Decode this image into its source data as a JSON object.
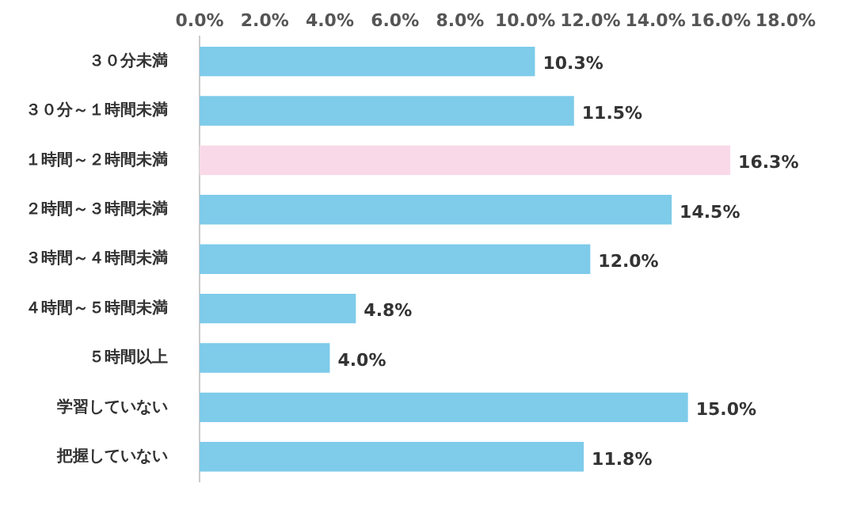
{
  "chart_data": {
    "type": "bar",
    "orientation": "horizontal",
    "categories": [
      "３０分未満",
      "３０分～１時間未満",
      "１時間～２時間未満",
      "２時間～３時間未満",
      "３時間～４時間未満",
      "４時間～５時間未満",
      "５時間以上",
      "学習していない",
      "把握していない"
    ],
    "values": [
      10.3,
      11.5,
      16.3,
      14.5,
      12.0,
      4.8,
      4.0,
      15.0,
      11.8
    ],
    "colors": [
      "#7ecbea",
      "#7ecbea",
      "#f9d9e8",
      "#7ecbea",
      "#7ecbea",
      "#7ecbea",
      "#7ecbea",
      "#7ecbea",
      "#7ecbea"
    ],
    "value_labels": [
      "10.3%",
      "11.5%",
      "16.3%",
      "14.5%",
      "12.0%",
      "4.8%",
      "4.0%",
      "15.0%",
      "11.8%"
    ],
    "xlim": [
      0,
      18
    ],
    "xticks": [
      {
        "value": 0,
        "label": "0.0%"
      },
      {
        "value": 2,
        "label": "2.0%"
      },
      {
        "value": 4,
        "label": "4.0%"
      },
      {
        "value": 6,
        "label": "6.0%"
      },
      {
        "value": 8,
        "label": "8.0%"
      },
      {
        "value": 10,
        "label": "10.0%"
      },
      {
        "value": 12,
        "label": "12.0%"
      },
      {
        "value": 14,
        "label": "14.0%"
      },
      {
        "value": 16,
        "label": "16.0%"
      },
      {
        "value": 18,
        "label": "18.0%"
      }
    ],
    "grid": false,
    "legend": false
  }
}
